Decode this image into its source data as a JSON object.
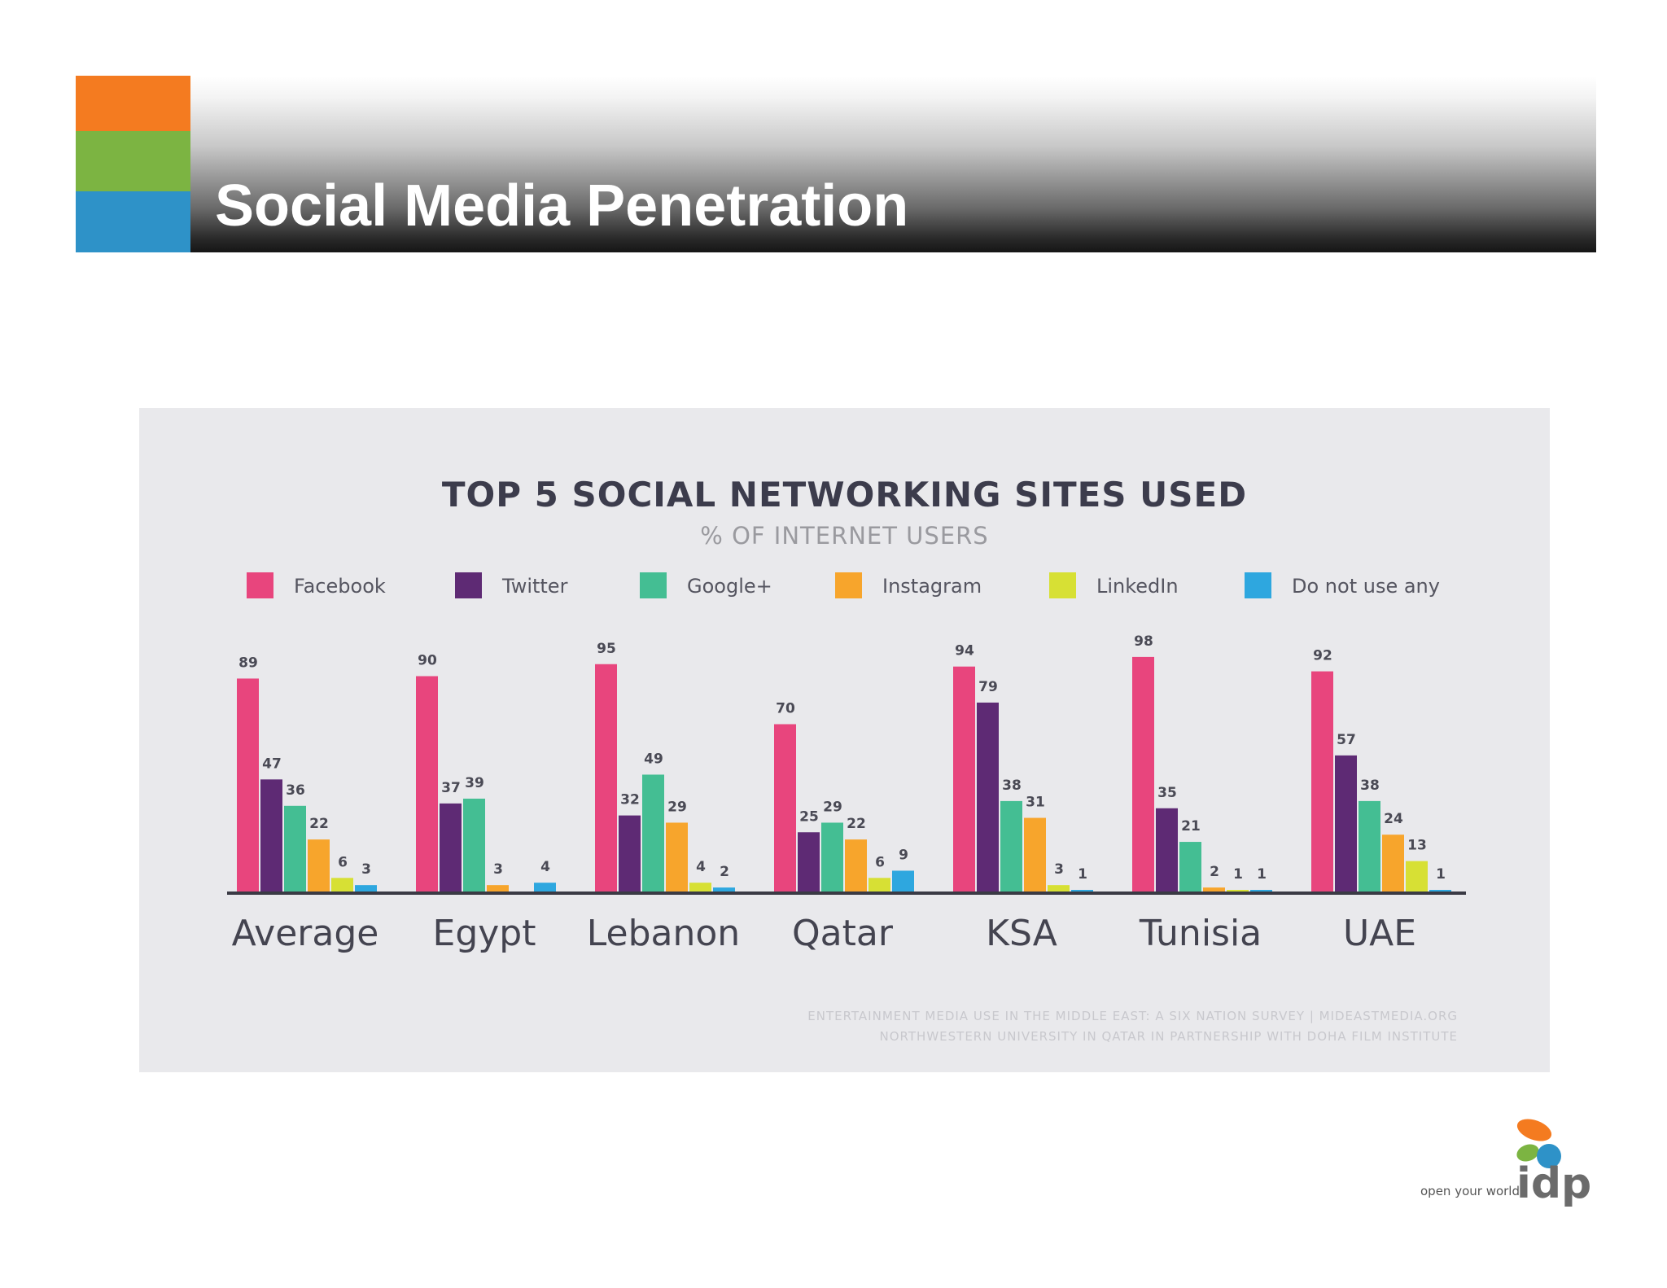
{
  "slide": {
    "title": "Social Media Penetration"
  },
  "colors": {
    "orange": "#f47b20",
    "green": "#7cb442",
    "blue": "#2e92c8"
  },
  "chart_data": {
    "type": "bar",
    "title": "TOP 5 SOCIAL NETWORKING SITES USED",
    "subtitle": "% OF INTERNET USERS",
    "xlabel": "",
    "ylabel": "",
    "ylim": [
      0,
      100
    ],
    "grid": false,
    "legend_position": "top",
    "categories": [
      "Average",
      "Egypt",
      "Lebanon",
      "Qatar",
      "KSA",
      "Tunisia",
      "UAE"
    ],
    "series": [
      {
        "name": "Facebook",
        "color": "#e8457d",
        "values": [
          89,
          90,
          95,
          70,
          94,
          98,
          92
        ]
      },
      {
        "name": "Twitter",
        "color": "#5e2a74",
        "values": [
          47,
          37,
          32,
          25,
          79,
          35,
          57
        ]
      },
      {
        "name": "Google+",
        "color": "#44be93",
        "values": [
          36,
          39,
          49,
          29,
          38,
          21,
          38
        ]
      },
      {
        "name": "Instagram",
        "color": "#f7a52c",
        "values": [
          22,
          3,
          29,
          22,
          31,
          2,
          24
        ]
      },
      {
        "name": "LinkedIn",
        "color": "#d7e034",
        "values": [
          6,
          null,
          4,
          6,
          3,
          1,
          13
        ]
      },
      {
        "name": "Do not use any",
        "color": "#2ea7df",
        "values": [
          3,
          4,
          2,
          9,
          1,
          1,
          1
        ]
      }
    ],
    "source": [
      "ENTERTAINMENT MEDIA USE IN THE MIDDLE EAST: A SIX NATION SURVEY | MIDEASTMEDIA.ORG",
      "NORTHWESTERN UNIVERSITY IN QATAR IN PARTNERSHIP WITH DOHA FILM INSTITUTE"
    ]
  },
  "logo": {
    "tagline": "open your world",
    "word": "idp"
  }
}
